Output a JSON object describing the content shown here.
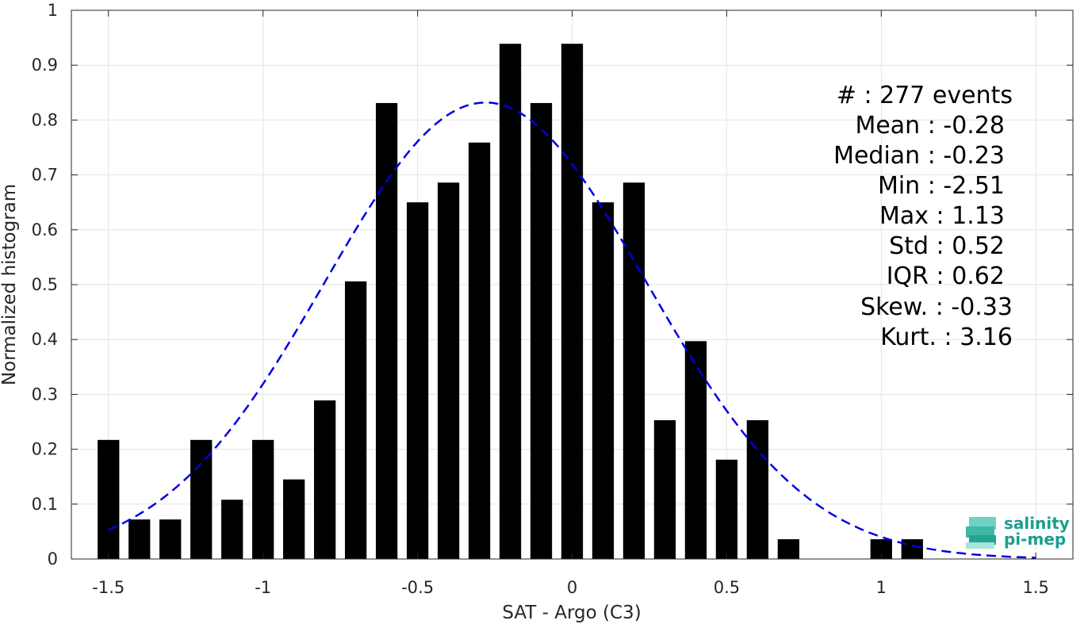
{
  "chart_data": {
    "type": "bar",
    "xlabel": "SAT - Argo (C3)",
    "ylabel": "Normalized histogram",
    "xlim": [
      -1.62,
      1.62
    ],
    "ylim": [
      0,
      1
    ],
    "xticks": [
      -1.5,
      -1,
      -0.5,
      0,
      0.5,
      1,
      1.5
    ],
    "xtick_labels": [
      "-1.5",
      "-1",
      "-0.5",
      "0",
      "0.5",
      "1",
      "1.5"
    ],
    "yticks": [
      0,
      0.1,
      0.2,
      0.3,
      0.4,
      0.5,
      0.6,
      0.7,
      0.8,
      0.9,
      1
    ],
    "ytick_labels": [
      "0",
      "0.1",
      "0.2",
      "0.3",
      "0.4",
      "0.5",
      "0.6",
      "0.7",
      "0.8",
      "0.9",
      "1"
    ],
    "grid": true,
    "bar_color": "#000000",
    "bin_width": 0.1,
    "bars": [
      {
        "x": -1.5,
        "y": 0.217
      },
      {
        "x": -1.4,
        "y": 0.072
      },
      {
        "x": -1.3,
        "y": 0.072
      },
      {
        "x": -1.2,
        "y": 0.217
      },
      {
        "x": -1.1,
        "y": 0.108
      },
      {
        "x": -1.0,
        "y": 0.217
      },
      {
        "x": -0.9,
        "y": 0.145
      },
      {
        "x": -0.8,
        "y": 0.289
      },
      {
        "x": -0.7,
        "y": 0.506
      },
      {
        "x": -0.6,
        "y": 0.831
      },
      {
        "x": -0.5,
        "y": 0.65
      },
      {
        "x": -0.4,
        "y": 0.686
      },
      {
        "x": -0.3,
        "y": 0.759
      },
      {
        "x": -0.2,
        "y": 0.939
      },
      {
        "x": -0.1,
        "y": 0.831
      },
      {
        "x": 0.0,
        "y": 0.939
      },
      {
        "x": 0.1,
        "y": 0.65
      },
      {
        "x": 0.2,
        "y": 0.686
      },
      {
        "x": 0.3,
        "y": 0.253
      },
      {
        "x": 0.4,
        "y": 0.397
      },
      {
        "x": 0.5,
        "y": 0.181
      },
      {
        "x": 0.6,
        "y": 0.253
      },
      {
        "x": 0.7,
        "y": 0.036
      },
      {
        "x": 1.0,
        "y": 0.036
      },
      {
        "x": 1.1,
        "y": 0.036
      }
    ],
    "fit_curve": {
      "style": "dashed",
      "color": "#0000e6",
      "mean": -0.28,
      "std": 0.52,
      "peak": 0.832,
      "x_range": [
        -1.5,
        1.5
      ]
    },
    "stats": [
      {
        "label": "#  : 277 events"
      },
      {
        "label": "Mean : -0.28"
      },
      {
        "label": "Median : -0.23"
      },
      {
        "label": "Min : -2.51"
      },
      {
        "label": "Max : 1.13"
      },
      {
        "label": "Std : 0.52"
      },
      {
        "label": "IQR : 0.62"
      },
      {
        "label": "Skew. : -0.33"
      },
      {
        "label": "Kurt. : 3.16"
      }
    ]
  },
  "logo": {
    "line1": "salinity",
    "line2": "pi-mep"
  }
}
